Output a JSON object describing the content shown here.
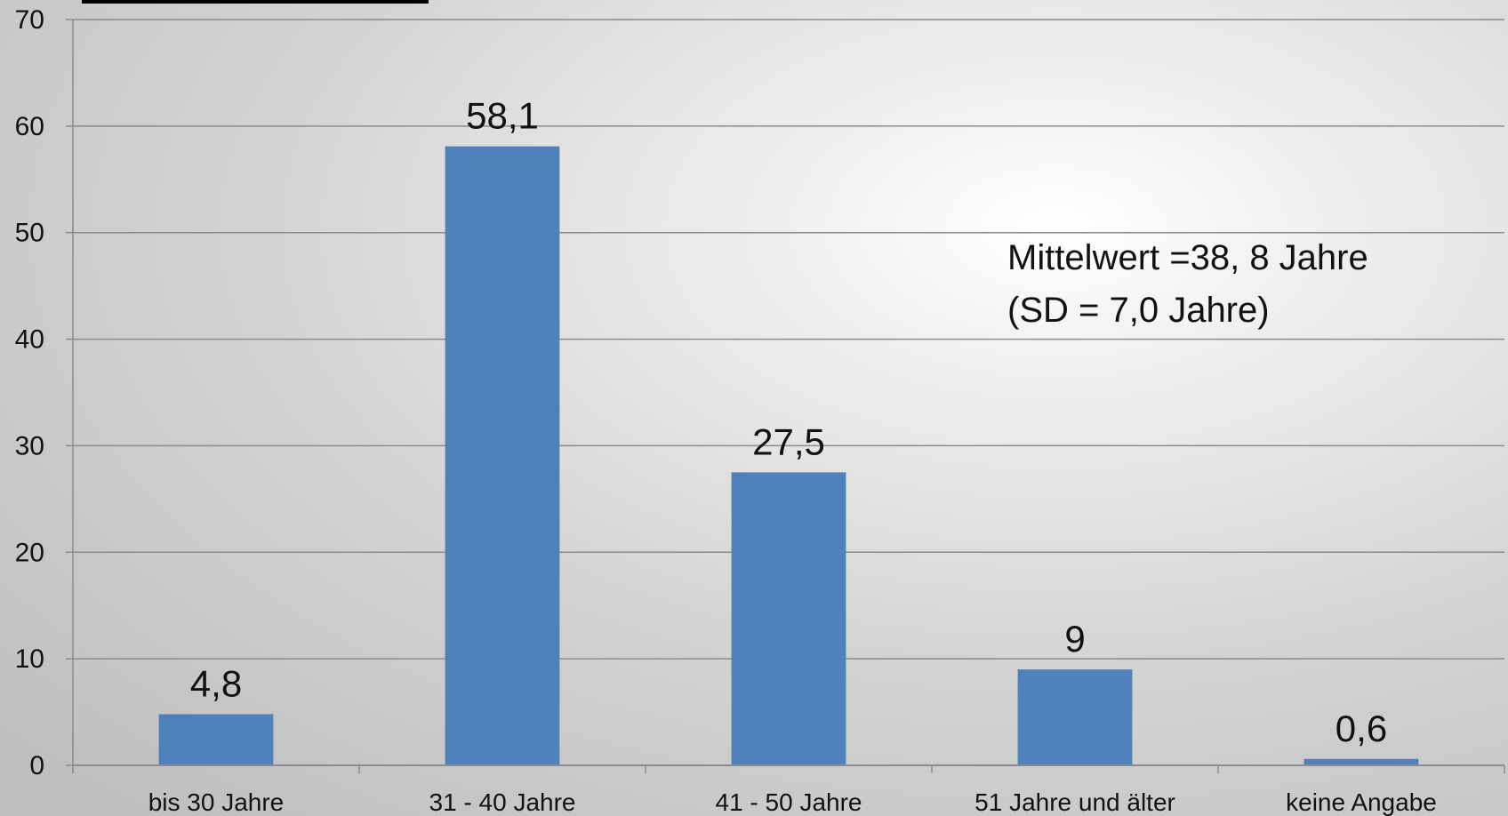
{
  "chart_data": {
    "type": "bar",
    "title": "",
    "xlabel": "",
    "ylabel": "",
    "categories": [
      "bis 30 Jahre",
      "31 - 40 Jahre",
      "41 - 50 Jahre",
      "51 Jahre und älter",
      "keine Angabe"
    ],
    "values": [
      4.8,
      58.1,
      27.5,
      9,
      0.6
    ],
    "value_labels": [
      "4,8",
      "58,1",
      "27,5",
      "9",
      "0,6"
    ],
    "ylim": [
      0,
      70
    ],
    "yticks": [
      0,
      10,
      20,
      30,
      40,
      50,
      60,
      70
    ],
    "grid": true,
    "legend": "none",
    "bar_color": "#4f81bd",
    "annotation": {
      "line1": "Mittelwert =38, 8 Jahre",
      "line2": "(SD = 7,0 Jahre)"
    }
  }
}
